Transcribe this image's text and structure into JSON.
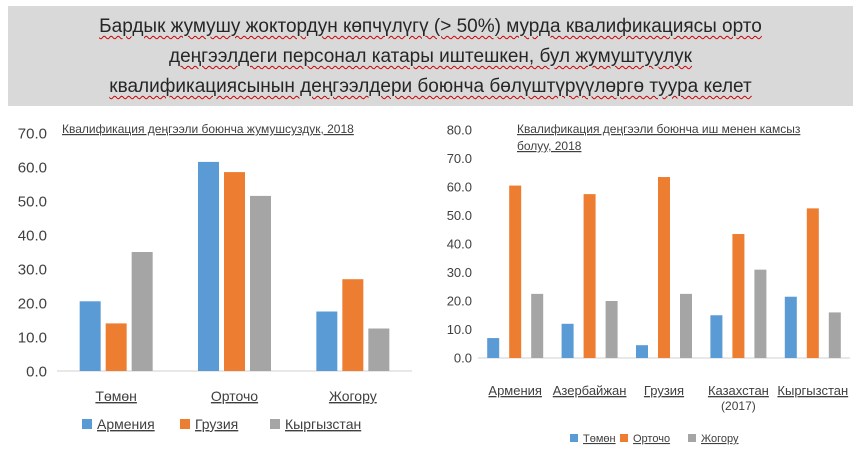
{
  "banner": {
    "lines": [
      "Бардык жумушу жоктордун көпчүлүгү (> 50%) мурда квалификациясы орто",
      "деңгээлдеги персонал катары иштешкен, бул жумуштуулук",
      "квалификациясынын  деңгээлдери боюнча бөлүштүрүүлөргө туура келет"
    ]
  },
  "colors": {
    "s1": "#5b9bd5",
    "s2": "#ed7d31",
    "s3": "#a5a5a5"
  },
  "chart_data": [
    {
      "type": "bar",
      "title": "Квалификация деңгээли боюнча жумушсуздук, 2018",
      "categories": [
        "Төмөн",
        "Орточо",
        "Жогору"
      ],
      "series": [
        {
          "name": "Армения",
          "values": [
            20.5,
            61.5,
            17.5
          ]
        },
        {
          "name": "Грузия",
          "values": [
            14.0,
            58.5,
            27.0
          ]
        },
        {
          "name": "Кыргызстан",
          "values": [
            35.0,
            51.5,
            12.5
          ]
        }
      ],
      "ylim": [
        0,
        70
      ],
      "yticks": [
        "0.0",
        "10.0",
        "20.0",
        "30.0",
        "40.0",
        "50.0",
        "60.0",
        "70.0"
      ],
      "legend": "bottom",
      "grid": false
    },
    {
      "type": "bar",
      "title": [
        "Квалификация деңгээли боюнча иш менен камсыз",
        "болуу, 2018"
      ],
      "categories": [
        "Армения",
        "Азербайжан",
        "Грузия",
        "Казахстан",
        "Кыргызстан"
      ],
      "category_sublabels": [
        "",
        "",
        "",
        "(2017)",
        ""
      ],
      "series": [
        {
          "name": "Төмөн",
          "values": [
            7.0,
            12.0,
            4.5,
            15.0,
            21.5
          ]
        },
        {
          "name": "Орточо",
          "values": [
            60.5,
            57.5,
            63.5,
            43.5,
            52.5
          ]
        },
        {
          "name": "Жогору",
          "values": [
            22.5,
            20.0,
            22.5,
            31.0,
            16.0
          ]
        }
      ],
      "ylim": [
        0,
        80
      ],
      "yticks": [
        "0.0",
        "10.0",
        "20.0",
        "30.0",
        "40.0",
        "50.0",
        "60.0",
        "70.0",
        "80.0"
      ],
      "legend": "bottom",
      "grid": false
    }
  ]
}
